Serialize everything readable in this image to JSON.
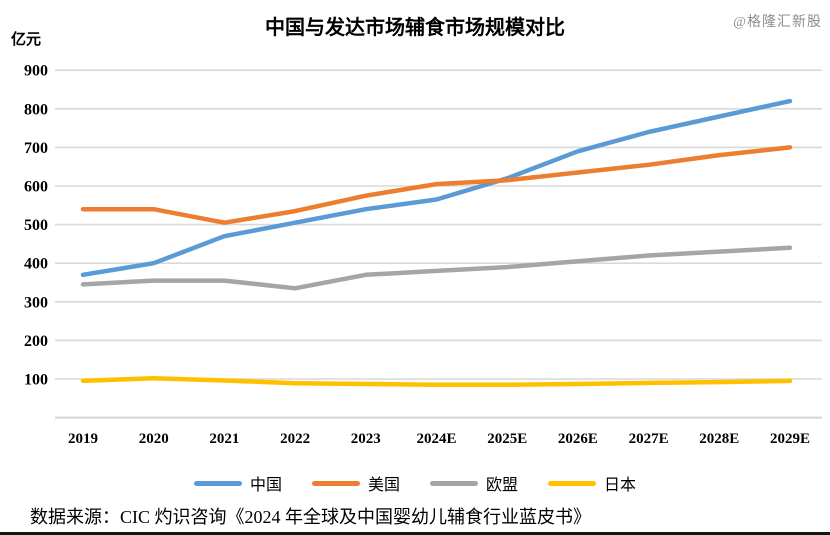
{
  "watermark": "@格隆汇新股",
  "source": "数据来源：CIC 灼识咨询《2024 年全球及中国婴幼儿辅食行业蓝皮书》",
  "chart_data": {
    "type": "line",
    "title": "中国与发达市场辅食市场规模对比",
    "unit": "亿元",
    "xlabel": "",
    "ylabel": "亿元",
    "categories": [
      "2019",
      "2020",
      "2021",
      "2022",
      "2023",
      "2024E",
      "2025E",
      "2026E",
      "2027E",
      "2028E",
      "2029E"
    ],
    "y_ticks": [
      100,
      200,
      300,
      400,
      500,
      600,
      700,
      800,
      900
    ],
    "ylim": [
      0,
      950
    ],
    "grid": true,
    "legend_position": "bottom",
    "series": [
      {
        "key": "china",
        "name": "中国",
        "color": "#5B9BD5",
        "values": [
          370,
          400,
          470,
          505,
          540,
          565,
          620,
          690,
          740,
          780,
          820
        ]
      },
      {
        "key": "usa",
        "name": "美国",
        "color": "#ED7D31",
        "values": [
          540,
          540,
          505,
          535,
          575,
          605,
          615,
          635,
          655,
          680,
          700
        ]
      },
      {
        "key": "eu",
        "name": "欧盟",
        "color": "#A5A5A5",
        "values": [
          345,
          355,
          355,
          335,
          370,
          380,
          390,
          405,
          420,
          430,
          440
        ]
      },
      {
        "key": "japan",
        "name": "日本",
        "color": "#FFC000",
        "values": [
          95,
          102,
          96,
          89,
          87,
          85,
          85,
          87,
          90,
          92,
          95
        ]
      }
    ]
  }
}
